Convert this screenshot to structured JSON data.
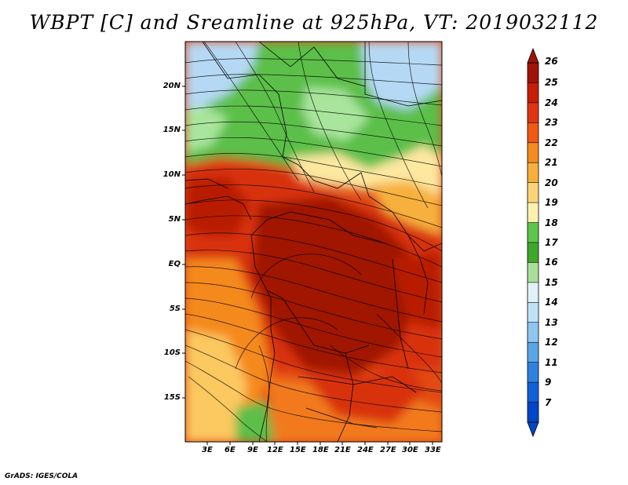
{
  "title": "WBPT [C] and Sreamline at 925hPa, VT: 2019032112",
  "footer": "GrADS: IGES/COLA",
  "map": {
    "lon_range": [
      0,
      34
    ],
    "lat_range": [
      -19,
      25
    ],
    "lat_labels": [
      "20N",
      "15N",
      "10N",
      "5N",
      "EQ",
      "5S",
      "10S",
      "15S"
    ],
    "lon_labels": [
      "3E",
      "6E",
      "9E",
      "12E",
      "15E",
      "18E",
      "21E",
      "24E",
      "27E",
      "30E",
      "33E"
    ],
    "colors": {
      "hot_core": "#a01405",
      "warm": "#d83010",
      "green": "#3ea82b",
      "light_blue": "#a8d0f2"
    }
  },
  "colorbar": {
    "levels": [
      "26",
      "25",
      "24",
      "23",
      "22",
      "21",
      "20",
      "19",
      "18",
      "17",
      "16",
      "15",
      "14",
      "13",
      "12",
      "11",
      "9",
      "7"
    ],
    "colors": [
      "#a01405",
      "#c81e05",
      "#e03510",
      "#f05a14",
      "#f58a1e",
      "#f7b03c",
      "#fcd478",
      "#fdf0b0",
      "#5fc44a",
      "#3ea82b",
      "#a8e09a",
      "#e0f2f7",
      "#bfe1f7",
      "#8fc6f0",
      "#5aa5e8",
      "#2d82e0",
      "#1060d8",
      "#0046c8"
    ]
  }
}
